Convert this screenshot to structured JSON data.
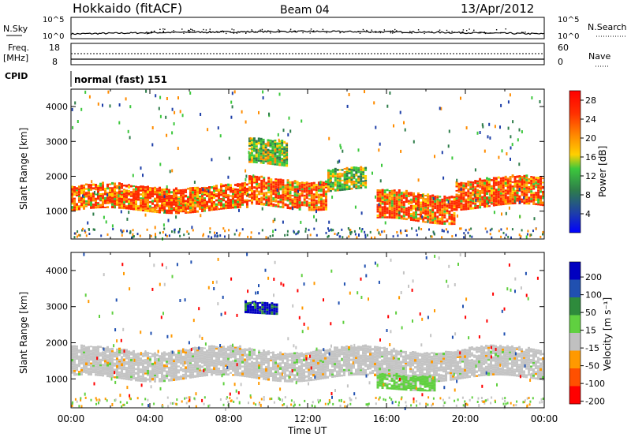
{
  "header": {
    "station": "Hokkaido (fitACF)",
    "beam": "Beam 04",
    "date": "13/Apr/2012"
  },
  "top_panels": {
    "nsky_label": "N.Sky",
    "nsky_ticks": [
      "10^5",
      "10^0"
    ],
    "nsearch_ticks": [
      "10^5",
      "10^0"
    ],
    "nsearch_label": "N.Search",
    "freq_label_1": "Freq.",
    "freq_label_2": "[MHz]",
    "freq_ticks": [
      "18",
      "8"
    ],
    "nave_ticks": [
      "60",
      "0"
    ],
    "nave_label": "Nave",
    "cpid_label": "CPID",
    "cpid_value": "normal (fast) 151"
  },
  "chart_data": [
    {
      "type": "heatmap",
      "name": "power-panel",
      "ylabel": "Slant Range [km]",
      "yticks": [
        "1000",
        "2000",
        "3000",
        "4000"
      ],
      "ylim": [
        200,
        4500
      ],
      "xlim": [
        0,
        24
      ],
      "colorbar_label": "Power [dB]",
      "colorbar_ticks": [
        "4",
        "8",
        "12",
        "16",
        "20",
        "24",
        "28"
      ],
      "colorbar_range": [
        0,
        30
      ],
      "colorbar_colors": [
        "#0000ff",
        "#1e3fa8",
        "#2e7d4a",
        "#3cc83c",
        "#ffd000",
        "#ff8c00",
        "#ff3000",
        "#ff0000"
      ],
      "echo_bands": [
        {
          "t0": 0,
          "t1": 9,
          "r0": 1000,
          "r1": 1700,
          "level": "high"
        },
        {
          "t0": 9,
          "t1": 13,
          "r0": 1100,
          "r1": 1900,
          "level": "high"
        },
        {
          "t0": 13,
          "t1": 15,
          "r0": 1600,
          "r1": 2200,
          "level": "mid"
        },
        {
          "t0": 15.5,
          "t1": 19.5,
          "r0": 700,
          "r1": 1500,
          "level": "high"
        },
        {
          "t0": 19.5,
          "t1": 24,
          "r0": 1100,
          "r1": 1900,
          "level": "high"
        },
        {
          "t0": 9,
          "t1": 11,
          "r0": 2300,
          "r1": 3000,
          "level": "mid"
        }
      ]
    },
    {
      "type": "heatmap",
      "name": "velocity-panel",
      "ylabel": "Slant Range [km]",
      "yticks": [
        "1000",
        "2000",
        "3000",
        "4000"
      ],
      "ylim": [
        200,
        4500
      ],
      "xlim": [
        0,
        24
      ],
      "xticks": [
        "00:00",
        "04:00",
        "08:00",
        "12:00",
        "16:00",
        "20:00",
        "00:00"
      ],
      "xlabel": "Time UT",
      "colorbar_label": "Velocity [m s⁻¹]",
      "colorbar_ticks": [
        "200",
        "100",
        "50",
        "15",
        "-15",
        "-50",
        "-100",
        "-200"
      ],
      "colorbar_colors": [
        "#0000c0",
        "#2050b0",
        "#2e8b3c",
        "#60d040",
        "#c0c0c0",
        "#ff9900",
        "#ff5000",
        "#ff0000"
      ],
      "echo_bands": [
        {
          "t0": 0,
          "t1": 24,
          "r0": 1000,
          "r1": 1800,
          "level": "grey"
        },
        {
          "t0": 15.5,
          "t1": 18.5,
          "r0": 700,
          "r1": 1100,
          "level": "green"
        },
        {
          "t0": 8.8,
          "t1": 10.5,
          "r0": 2800,
          "r1": 3100,
          "level": "blue"
        }
      ]
    }
  ]
}
